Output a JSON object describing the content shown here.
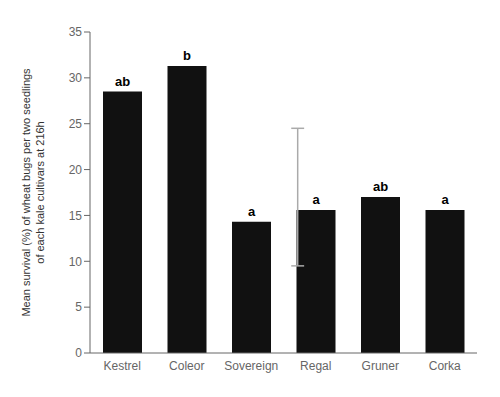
{
  "chart_data": {
    "type": "bar",
    "categories": [
      "Kestrel",
      "Coleor",
      "Sovereign",
      "Regal",
      "Gruner",
      "Corka"
    ],
    "values": [
      28.5,
      31.3,
      14.3,
      15.6,
      17.0,
      15.6
    ],
    "bar_labels": [
      "ab",
      "b",
      "a",
      "a",
      "ab",
      "a"
    ],
    "color": "#111111",
    "ylabel": "Mean survival (%) of wheat bugs per two seedlings\nof each kale cultivars at 216h",
    "ylim": [
      0,
      35
    ],
    "yticks": [
      0,
      5,
      10,
      15,
      20,
      25,
      30,
      35
    ],
    "lsd": {
      "x": 2.72,
      "bottom": 9.5,
      "top": 24.5,
      "color": "#aaaaaa"
    },
    "grid": false
  }
}
